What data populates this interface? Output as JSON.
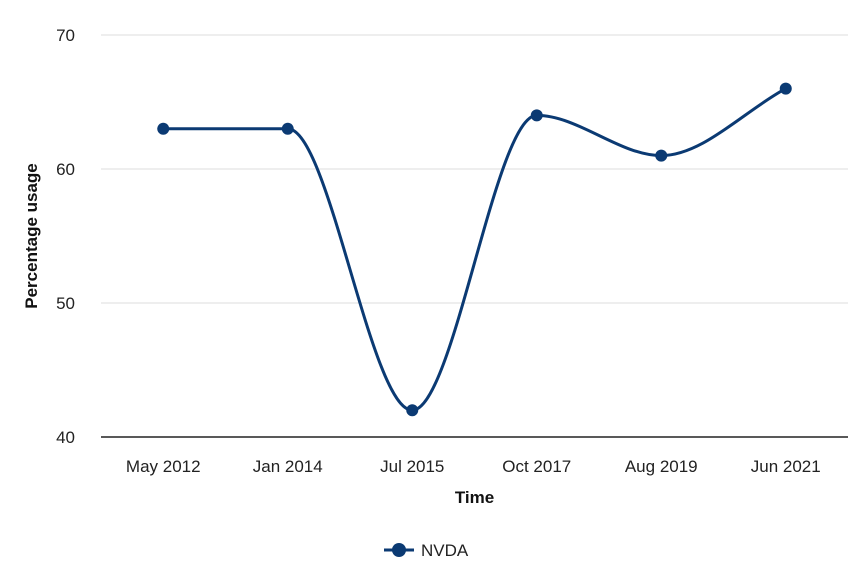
{
  "chart_data": {
    "type": "line",
    "categories": [
      "May 2012",
      "Jan 2014",
      "Jul 2015",
      "Oct 2017",
      "Aug 2019",
      "Jun 2021"
    ],
    "series": [
      {
        "name": "NVDA",
        "values": [
          63,
          63,
          42,
          64,
          61,
          66
        ]
      }
    ],
    "xlabel": "Time",
    "ylabel": "Percentage usage",
    "ylim": [
      40,
      70
    ],
    "yticks": [
      40,
      50,
      60,
      70
    ],
    "grid": true,
    "smooth": true,
    "legend": "bottom-center",
    "colors": {
      "series": "#0b3a73",
      "grid": "#dddddd",
      "axis": "#222222"
    }
  }
}
